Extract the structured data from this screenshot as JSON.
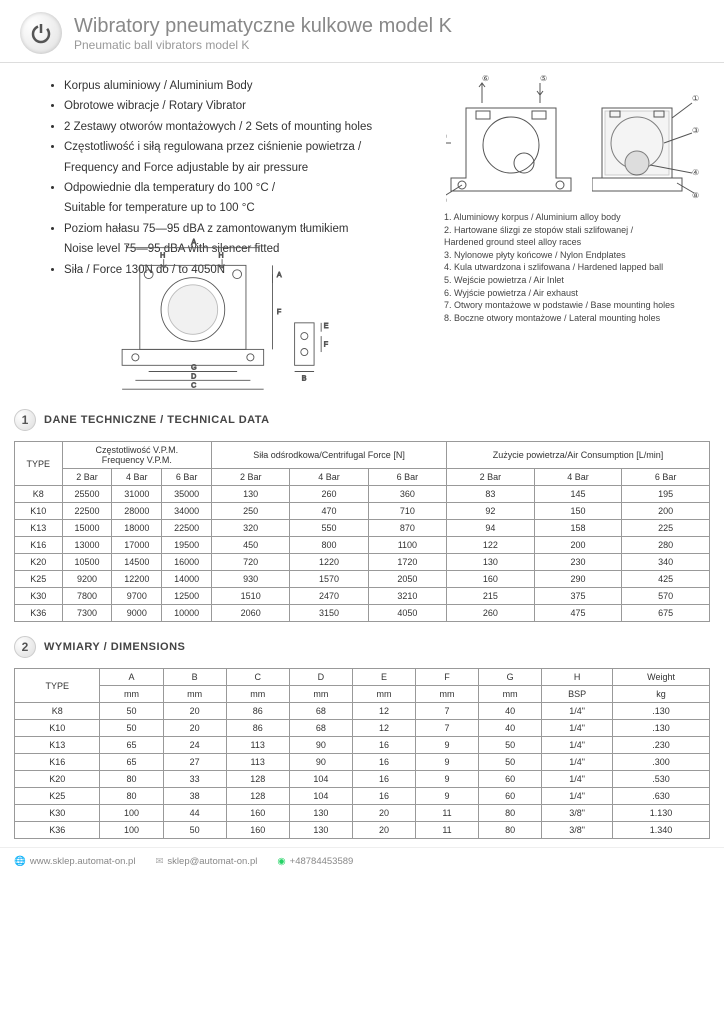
{
  "header": {
    "title": "Wibratory pneumatyczne kulkowe model K",
    "subtitle": "Pneumatic ball vibrators model K"
  },
  "features": [
    "Korpus aluminiowy / Aluminium Body",
    "Obrotowe wibracje / Rotary Vibrator",
    "2 Zestawy otworów montażowych / 2 Sets of mounting holes",
    "Częstotliwość i siłą regulowana przez ciśnienie powietrza /",
    "Frequency and Force adjustable by air pressure",
    "Odpowiednie dla temperatury do 100 °C /",
    "Suitable for temperature up to 100 °C",
    "Poziom hałasu 75—95 dBA z zamontowanym tłumikiem",
    "Noise level 75—95 dBA with silencer fitted",
    "Siła / Force 130N do / to 4050N"
  ],
  "feature_is_sub": [
    false,
    false,
    false,
    false,
    true,
    false,
    true,
    false,
    true,
    false
  ],
  "legend": [
    "1. Aluminiowy korpus / Aluminium alloy body",
    "2. Hartowane ślizgi ze stopów stali szlifowanej /",
    "    Hardened ground steel alloy races",
    "3. Nylonowe płyty końcowe / Nylon Endplates",
    "4. Kula utwardzona i szlifowana / Hardened lapped ball",
    "5. Wejście powietrza / Air Inlet",
    "6. Wyjście powietrza / Air exhaust",
    "7. Otwory montażowe w podstawie / Base mounting holes",
    "8. Boczne otwory montażowe / Lateral mounting holes"
  ],
  "section1": {
    "num": "1",
    "title": "DANE TECHNICZNE / TECHNICAL DATA"
  },
  "section2": {
    "num": "2",
    "title": "WYMIARY / DIMENSIONS"
  },
  "table1": {
    "head_groups": [
      {
        "label": "TYPE",
        "span": 1,
        "rowspan": 2
      },
      {
        "label": "Częstotliwość V.P.M.\nFrequency V.P.M.",
        "span": 3
      },
      {
        "label": "Siła odśrodkowa/Centrifugal Force [N]",
        "span": 3
      },
      {
        "label": "Zużycie powietrza/Air Consumption [L/min]",
        "span": 3
      }
    ],
    "sub_headers": [
      "2 Bar",
      "4 Bar",
      "6 Bar",
      "2 Bar",
      "4 Bar",
      "6 Bar",
      "2 Bar",
      "4 Bar",
      "6 Bar"
    ],
    "rows": [
      [
        "K8",
        "25500",
        "31000",
        "35000",
        "130",
        "260",
        "360",
        "83",
        "145",
        "195"
      ],
      [
        "K10",
        "22500",
        "28000",
        "34000",
        "250",
        "470",
        "710",
        "92",
        "150",
        "200"
      ],
      [
        "K13",
        "15000",
        "18000",
        "22500",
        "320",
        "550",
        "870",
        "94",
        "158",
        "225"
      ],
      [
        "K16",
        "13000",
        "17000",
        "19500",
        "450",
        "800",
        "1100",
        "122",
        "200",
        "280"
      ],
      [
        "K20",
        "10500",
        "14500",
        "16000",
        "720",
        "1220",
        "1720",
        "130",
        "230",
        "340"
      ],
      [
        "K25",
        "9200",
        "12200",
        "14000",
        "930",
        "1570",
        "2050",
        "160",
        "290",
        "425"
      ],
      [
        "K30",
        "7800",
        "9700",
        "12500",
        "1510",
        "2470",
        "3210",
        "215",
        "375",
        "570"
      ],
      [
        "K36",
        "7300",
        "9000",
        "10000",
        "2060",
        "3150",
        "4050",
        "260",
        "475",
        "675"
      ]
    ]
  },
  "table2": {
    "letters": [
      "A",
      "B",
      "C",
      "D",
      "E",
      "F",
      "G",
      "H",
      "Weight"
    ],
    "units": [
      "mm",
      "mm",
      "mm",
      "mm",
      "mm",
      "mm",
      "mm",
      "BSP",
      "kg"
    ],
    "rows": [
      [
        "K8",
        "50",
        "20",
        "86",
        "68",
        "12",
        "7",
        "40",
        "1/4\"",
        ".130"
      ],
      [
        "K10",
        "50",
        "20",
        "86",
        "68",
        "12",
        "7",
        "40",
        "1/4\"",
        ".130"
      ],
      [
        "K13",
        "65",
        "24",
        "113",
        "90",
        "16",
        "9",
        "50",
        "1/4\"",
        ".230"
      ],
      [
        "K16",
        "65",
        "27",
        "113",
        "90",
        "16",
        "9",
        "50",
        "1/4\"",
        ".300"
      ],
      [
        "K20",
        "80",
        "33",
        "128",
        "104",
        "16",
        "9",
        "60",
        "1/4\"",
        ".530"
      ],
      [
        "K25",
        "80",
        "38",
        "128",
        "104",
        "16",
        "9",
        "60",
        "1/4\"",
        ".630"
      ],
      [
        "K30",
        "100",
        "44",
        "160",
        "130",
        "20",
        "11",
        "80",
        "3/8\"",
        "1.130"
      ],
      [
        "K36",
        "100",
        "50",
        "160",
        "130",
        "20",
        "11",
        "80",
        "3/8\"",
        "1.340"
      ]
    ]
  },
  "footer": {
    "web": "www.sklep.automat-on.pl",
    "email": "sklep@automat-on.pl",
    "phone": "+48784453589"
  },
  "colors": {
    "border": "#999",
    "text": "#333",
    "muted": "#888"
  }
}
